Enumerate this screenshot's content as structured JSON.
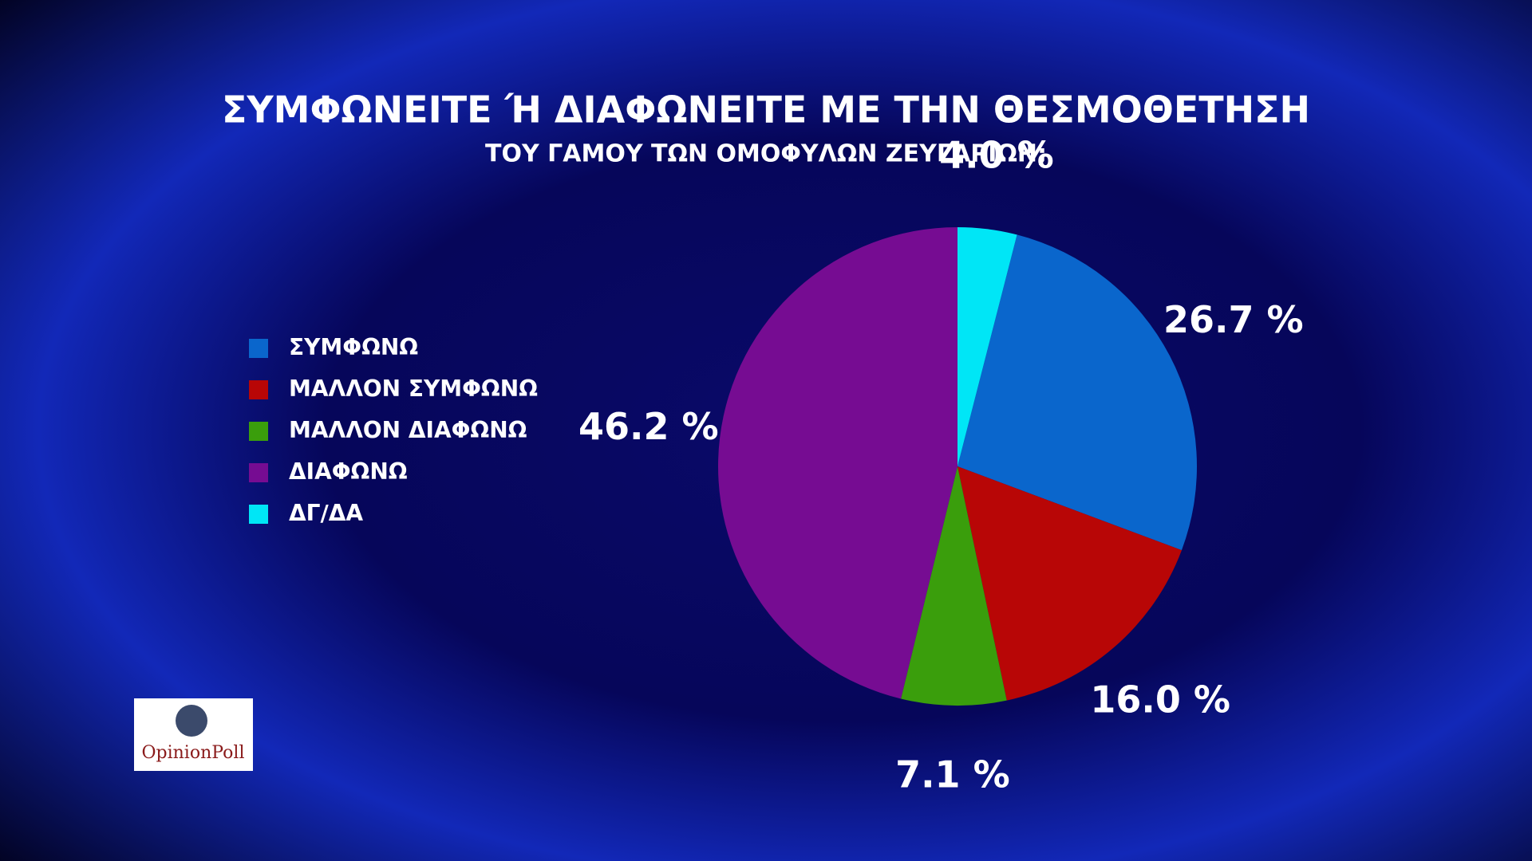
{
  "chart_data": {
    "type": "pie",
    "title": "ΣΥΜΦΩΝΕΙΤΕ Ή ΔΙΑΦΩΝΕΙΤΕ ΜΕ ΤΗΝ ΘΕΣΜΟΘΕΤΗΣΗ",
    "subtitle": "ΤΟΥ ΓΑΜΟΥ ΤΩΝ ΟΜΟΦΥΛΩΝ ΖΕΥΓΑΡΙΩΝ;",
    "categories": [
      "ΣΥΜΦΩΝΩ",
      "ΜΑΛΛΟΝ ΣΥΜΦΩΝΩ",
      "ΜΑΛΛΟΝ ΔΙΑΦΩΝΩ",
      "ΔΙΑΦΩΝΩ",
      "ΔΓ/ΔΑ"
    ],
    "values": [
      26.7,
      16.0,
      7.1,
      46.2,
      4.0
    ],
    "value_labels": [
      "26.7 %",
      "16.0 %",
      "7.1 %",
      "46.2 %",
      "4.0 %"
    ],
    "colors": [
      "#0a66cc",
      "#b80606",
      "#3a9e0c",
      "#760c92",
      "#00e6f6"
    ],
    "legend": "left"
  },
  "logo": "OpinionPoll"
}
